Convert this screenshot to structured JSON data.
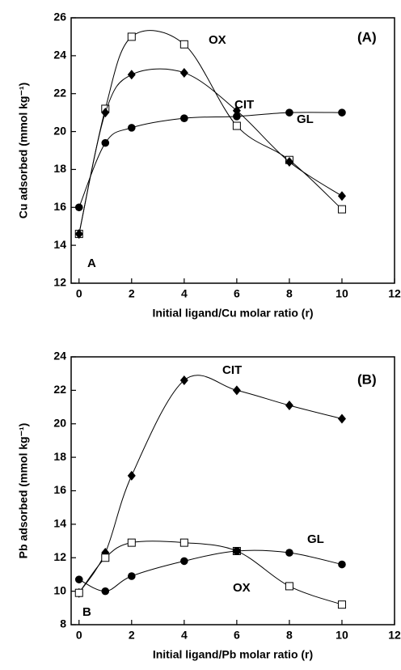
{
  "chart_data": [
    {
      "type": "line",
      "ylabel": "Cu adsorbed (mmol kg⁻¹)",
      "xlabel": "Initial ligand/Cu molar ratio (r)",
      "x": [
        0,
        1,
        2,
        4,
        6,
        8,
        10
      ],
      "xlim": [
        -0.3,
        12
      ],
      "xticks": [
        0,
        2,
        4,
        6,
        8,
        10,
        12
      ],
      "ylim": [
        12,
        26
      ],
      "yticks": [
        12,
        14,
        16,
        18,
        20,
        22,
        24,
        26
      ],
      "series": [
        {
          "name": "OX",
          "marker": "square",
          "color": "#000000",
          "values": [
            14.6,
            21.2,
            25.0,
            24.6,
            20.3,
            18.5,
            15.9
          ]
        },
        {
          "name": "CIT",
          "marker": "diamond",
          "color": "#000000",
          "values": [
            14.6,
            21.0,
            23.0,
            23.1,
            21.1,
            18.4,
            16.6
          ]
        },
        {
          "name": "GL",
          "marker": "circle",
          "color": "#000000",
          "values": [
            16.0,
            19.4,
            20.2,
            20.7,
            20.8,
            21.0,
            21.0
          ]
        }
      ],
      "annotations": [
        "OX",
        "CIT",
        "GL",
        "(A)",
        "A"
      ]
    },
    {
      "type": "line",
      "ylabel": "Pb adsorbed (mmol kg⁻¹)",
      "xlabel": "Initial ligand/Pb molar ratio (r)",
      "x": [
        0,
        1,
        2,
        4,
        6,
        8,
        10
      ],
      "xlim": [
        -0.3,
        12
      ],
      "xticks": [
        0,
        2,
        4,
        6,
        8,
        10,
        12
      ],
      "ylim": [
        8,
        24
      ],
      "yticks": [
        8,
        10,
        12,
        14,
        16,
        18,
        20,
        22,
        24
      ],
      "series": [
        {
          "name": "CIT",
          "marker": "diamond",
          "color": "#000000",
          "values": [
            9.9,
            12.3,
            16.9,
            22.6,
            22.0,
            21.1,
            20.3
          ]
        },
        {
          "name": "OX",
          "marker": "square",
          "color": "#000000",
          "values": [
            9.9,
            12.0,
            12.9,
            12.9,
            12.4,
            10.3,
            9.2
          ]
        },
        {
          "name": "GL",
          "marker": "circle",
          "color": "#000000",
          "values": [
            10.7,
            10.0,
            10.9,
            11.8,
            12.4,
            12.3,
            11.6
          ]
        }
      ],
      "annotations": [
        "CIT",
        "GL",
        "OX",
        "(B)",
        "B"
      ]
    }
  ]
}
